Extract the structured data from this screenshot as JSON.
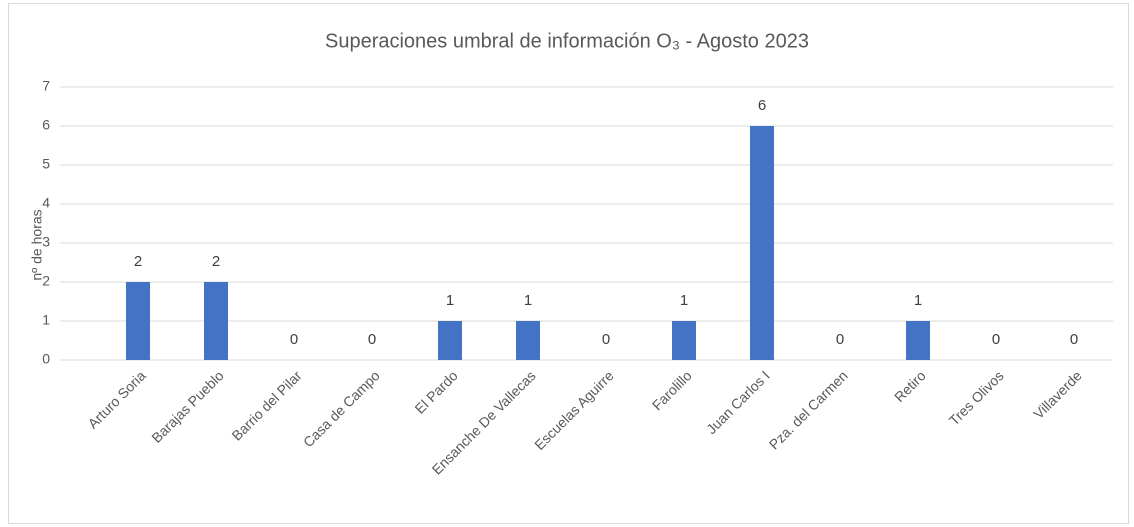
{
  "chart_data": {
    "type": "bar",
    "title": "Superaciones umbral de información O₃ - Agosto 2023",
    "y_label": "nº de horas",
    "categories": [
      "Arturo Soria",
      "Barajas Pueblo",
      "Barrio del Pilar",
      "Casa de Campo",
      "El Pardo",
      "Ensanche De Vallecas",
      "Escuelas Aguirre",
      "Farolillo",
      "Juan Carlos I",
      "Pza. del Carmen",
      "Retiro",
      "Tres Olivos",
      "Villaverde"
    ],
    "values": [
      2,
      2,
      0,
      0,
      1,
      1,
      0,
      1,
      6,
      0,
      1,
      0,
      0
    ],
    "color": "#4472c4",
    "ylim": [
      0,
      7
    ],
    "yticks": [
      0,
      1,
      2,
      3,
      4,
      5,
      6,
      7
    ],
    "grid": true,
    "data_labels": true
  }
}
